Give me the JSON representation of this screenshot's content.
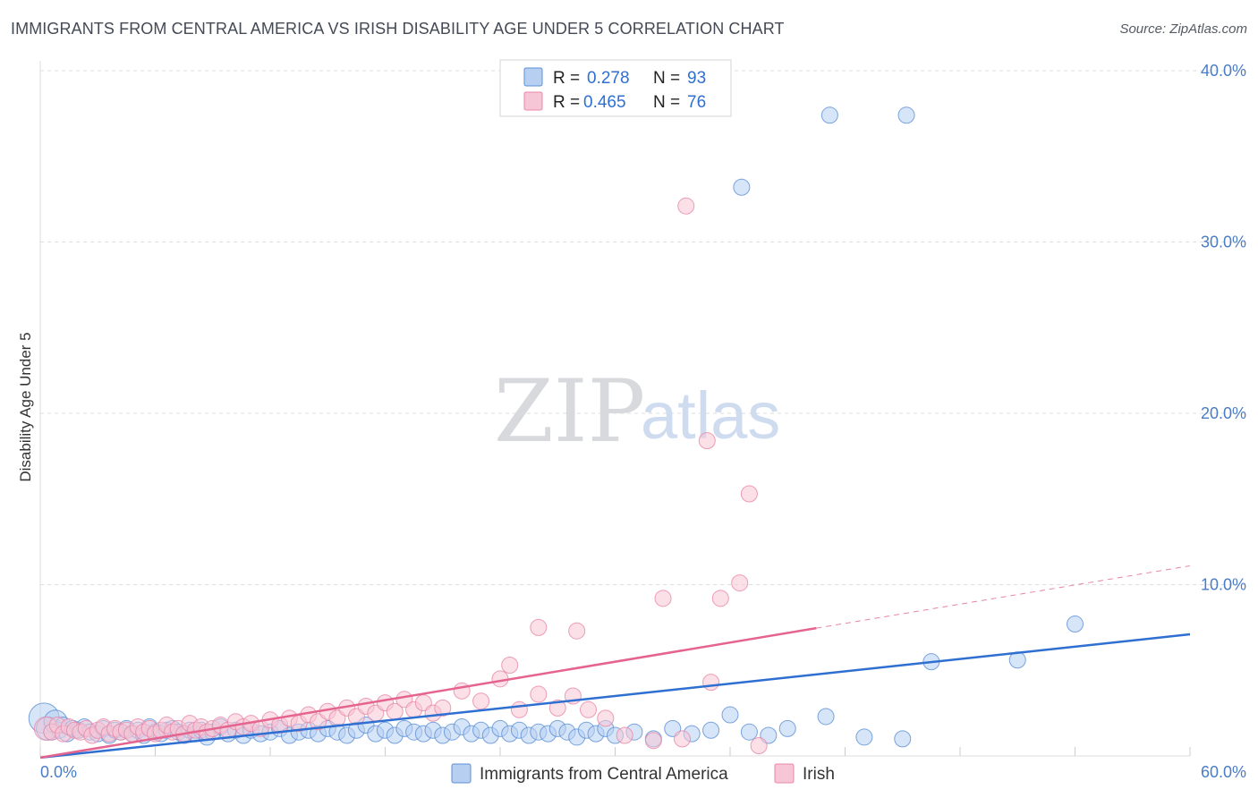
{
  "header": {
    "title": "IMMIGRANTS FROM CENTRAL AMERICA VS IRISH DISABILITY AGE UNDER 5 CORRELATION CHART",
    "source": "Source: ZipAtlas.com"
  },
  "watermark": {
    "zip": "ZIP",
    "atlas": "atlas"
  },
  "colors": {
    "blue": "#5b8fd6",
    "blue_fill": "#b7d0f2",
    "blue_line": "#2e6fd1",
    "pink": "#e886a6",
    "pink_fill": "#f7c6d6",
    "pink_line": "#e5648f",
    "tick": "#4a7cc7",
    "grid": "#dddddd"
  },
  "legend_top": {
    "rows": [
      {
        "r_label": "R =",
        "r_value": "0.278",
        "n_label": "N =",
        "n_value": "93"
      },
      {
        "r_label": "R =",
        "r_value": "0.465",
        "n_label": "N =",
        "n_value": "76"
      }
    ]
  },
  "chart_data": {
    "type": "scatter",
    "title": "IMMIGRANTS FROM CENTRAL AMERICA VS IRISH DISABILITY AGE UNDER 5 CORRELATION CHART",
    "xlabel": "",
    "ylabel": "Disability Age Under 5",
    "xlim": [
      0,
      60
    ],
    "ylim": [
      0,
      40
    ],
    "x_tick_labels": [
      "0.0%",
      "60.0%"
    ],
    "y_ticks": [
      10,
      20,
      30,
      40
    ],
    "y_tick_labels": [
      "10.0%",
      "20.0%",
      "30.0%",
      "40.0%"
    ],
    "grid": true,
    "legend_position": "bottom-center",
    "series": [
      {
        "name": "Immigrants from Central America",
        "r": 0.278,
        "n": 93,
        "trend": {
          "x": [
            0,
            60
          ],
          "y": [
            -0.1,
            7.1
          ],
          "dashed_from": null
        },
        "points": [
          [
            0.2,
            2.2,
            3
          ],
          [
            0.4,
            1.6,
            2
          ],
          [
            0.6,
            1.4,
            1
          ],
          [
            0.8,
            2.0,
            2
          ],
          [
            1.0,
            1.5,
            1
          ],
          [
            1.2,
            1.8,
            1
          ],
          [
            1.4,
            1.3,
            1
          ],
          [
            1.7,
            1.6,
            1
          ],
          [
            2.0,
            1.5,
            1
          ],
          [
            2.3,
            1.7,
            1
          ],
          [
            2.6,
            1.4,
            1
          ],
          [
            3.0,
            1.3,
            1
          ],
          [
            3.3,
            1.6,
            1
          ],
          [
            3.6,
            1.2,
            1
          ],
          [
            3.9,
            1.5,
            1
          ],
          [
            4.2,
            1.4,
            1
          ],
          [
            4.5,
            1.6,
            1
          ],
          [
            4.8,
            1.3,
            1
          ],
          [
            5.1,
            1.5,
            1
          ],
          [
            5.4,
            1.2,
            1
          ],
          [
            5.7,
            1.7,
            1
          ],
          [
            6.0,
            1.4,
            1
          ],
          [
            6.3,
            1.3,
            1
          ],
          [
            6.6,
            1.5,
            1
          ],
          [
            6.9,
            1.6,
            1
          ],
          [
            7.2,
            1.4,
            1
          ],
          [
            7.5,
            1.2,
            1
          ],
          [
            7.8,
            1.5,
            1
          ],
          [
            8.1,
            1.3,
            1
          ],
          [
            8.4,
            1.5,
            1
          ],
          [
            8.7,
            1.1,
            1
          ],
          [
            9.0,
            1.4,
            1
          ],
          [
            9.4,
            1.7,
            1
          ],
          [
            9.8,
            1.3,
            1
          ],
          [
            10.2,
            1.5,
            1
          ],
          [
            10.6,
            1.2,
            1
          ],
          [
            11.0,
            1.5,
            1
          ],
          [
            11.5,
            1.3,
            1
          ],
          [
            12.0,
            1.4,
            1
          ],
          [
            12.5,
            1.6,
            1
          ],
          [
            13.0,
            1.2,
            1
          ],
          [
            13.5,
            1.4,
            1
          ],
          [
            14.0,
            1.5,
            1
          ],
          [
            14.5,
            1.3,
            1
          ],
          [
            15.0,
            1.6,
            1
          ],
          [
            15.5,
            1.4,
            1
          ],
          [
            16.0,
            1.2,
            1
          ],
          [
            16.5,
            1.5,
            1
          ],
          [
            17.0,
            1.8,
            1
          ],
          [
            17.5,
            1.3,
            1
          ],
          [
            18.0,
            1.5,
            1
          ],
          [
            18.5,
            1.2,
            1
          ],
          [
            19.0,
            1.6,
            1
          ],
          [
            19.5,
            1.4,
            1
          ],
          [
            20.0,
            1.3,
            1
          ],
          [
            20.5,
            1.5,
            1
          ],
          [
            21.0,
            1.2,
            1
          ],
          [
            21.5,
            1.4,
            1
          ],
          [
            22.0,
            1.7,
            1
          ],
          [
            22.5,
            1.3,
            1
          ],
          [
            23.0,
            1.5,
            1
          ],
          [
            23.5,
            1.2,
            1
          ],
          [
            24.0,
            1.6,
            1
          ],
          [
            24.5,
            1.3,
            1
          ],
          [
            25.0,
            1.5,
            1
          ],
          [
            25.5,
            1.2,
            1
          ],
          [
            26.0,
            1.4,
            1
          ],
          [
            26.5,
            1.3,
            1
          ],
          [
            27.0,
            1.6,
            1
          ],
          [
            27.5,
            1.4,
            1
          ],
          [
            28.0,
            1.1,
            1
          ],
          [
            28.5,
            1.5,
            1
          ],
          [
            29.0,
            1.3,
            1
          ],
          [
            29.5,
            1.6,
            1
          ],
          [
            30.0,
            1.2,
            1
          ],
          [
            31.0,
            1.4,
            1
          ],
          [
            32.0,
            1.0,
            1
          ],
          [
            33.0,
            1.6,
            1
          ],
          [
            34.0,
            1.3,
            1
          ],
          [
            35.0,
            1.5,
            1
          ],
          [
            36.0,
            2.4,
            1
          ],
          [
            37.0,
            1.4,
            1
          ],
          [
            38.0,
            1.2,
            1
          ],
          [
            39.0,
            1.6,
            1
          ],
          [
            41.0,
            2.3,
            1
          ],
          [
            43.0,
            1.1,
            1
          ],
          [
            45.0,
            1.0,
            1
          ],
          [
            46.5,
            5.5,
            1
          ],
          [
            51.0,
            5.6,
            1
          ],
          [
            54.0,
            7.7,
            1
          ],
          [
            36.6,
            33.2,
            1
          ],
          [
            41.2,
            37.4,
            1
          ],
          [
            45.2,
            37.4,
            1
          ]
        ]
      },
      {
        "name": "Irish",
        "r": 0.465,
        "n": 76,
        "trend": {
          "x": [
            0,
            60
          ],
          "y": [
            -0.1,
            11.1
          ],
          "dashed_from": 40.5
        },
        "points": [
          [
            0.3,
            1.6,
            2
          ],
          [
            0.6,
            1.4,
            1
          ],
          [
            0.9,
            1.8,
            1
          ],
          [
            1.2,
            1.3,
            1
          ],
          [
            1.5,
            1.7,
            1
          ],
          [
            1.8,
            1.5,
            1
          ],
          [
            2.1,
            1.4,
            1
          ],
          [
            2.4,
            1.6,
            1
          ],
          [
            2.7,
            1.2,
            1
          ],
          [
            3.0,
            1.5,
            1
          ],
          [
            3.3,
            1.7,
            1
          ],
          [
            3.6,
            1.3,
            1
          ],
          [
            3.9,
            1.6,
            1
          ],
          [
            4.2,
            1.4,
            1
          ],
          [
            4.5,
            1.5,
            1
          ],
          [
            4.8,
            1.3,
            1
          ],
          [
            5.1,
            1.7,
            1
          ],
          [
            5.4,
            1.4,
            1
          ],
          [
            5.7,
            1.6,
            1
          ],
          [
            6.0,
            1.3,
            1
          ],
          [
            6.3,
            1.5,
            1
          ],
          [
            6.6,
            1.8,
            1
          ],
          [
            6.9,
            1.4,
            1
          ],
          [
            7.2,
            1.6,
            1
          ],
          [
            7.5,
            1.3,
            1
          ],
          [
            7.8,
            1.9,
            1
          ],
          [
            8.1,
            1.5,
            1
          ],
          [
            8.4,
            1.7,
            1
          ],
          [
            8.7,
            1.4,
            1
          ],
          [
            9.0,
            1.6,
            1
          ],
          [
            9.4,
            1.8,
            1
          ],
          [
            9.8,
            1.5,
            1
          ],
          [
            10.2,
            2.0,
            1
          ],
          [
            10.6,
            1.7,
            1
          ],
          [
            11.0,
            1.9,
            1
          ],
          [
            11.5,
            1.6,
            1
          ],
          [
            12.0,
            2.1,
            1
          ],
          [
            12.5,
            1.8,
            1
          ],
          [
            13.0,
            2.2,
            1
          ],
          [
            13.5,
            1.9,
            1
          ],
          [
            14.0,
            2.4,
            1
          ],
          [
            14.5,
            2.0,
            1
          ],
          [
            15.0,
            2.6,
            1
          ],
          [
            15.5,
            2.2,
            1
          ],
          [
            16.0,
            2.8,
            1
          ],
          [
            16.5,
            2.3,
            1
          ],
          [
            17.0,
            2.9,
            1
          ],
          [
            17.5,
            2.5,
            1
          ],
          [
            18.0,
            3.1,
            1
          ],
          [
            18.5,
            2.6,
            1
          ],
          [
            19.0,
            3.3,
            1
          ],
          [
            19.5,
            2.7,
            1
          ],
          [
            20.0,
            3.1,
            1
          ],
          [
            20.5,
            2.5,
            1
          ],
          [
            21.0,
            2.8,
            1
          ],
          [
            22.0,
            3.8,
            1
          ],
          [
            23.0,
            3.2,
            1
          ],
          [
            24.0,
            4.5,
            1
          ],
          [
            24.5,
            5.3,
            1
          ],
          [
            25.0,
            2.7,
            1
          ],
          [
            26.0,
            3.6,
            1
          ],
          [
            27.0,
            2.8,
            1
          ],
          [
            27.8,
            3.5,
            1
          ],
          [
            28.6,
            2.7,
            1
          ],
          [
            29.5,
            2.2,
            1
          ],
          [
            30.5,
            1.2,
            1
          ],
          [
            32.0,
            0.9,
            1
          ],
          [
            33.5,
            1.0,
            1
          ],
          [
            35.0,
            4.3,
            1
          ],
          [
            37.5,
            0.6,
            1
          ],
          [
            28.0,
            7.3,
            1
          ],
          [
            26.0,
            7.5,
            1
          ],
          [
            32.5,
            9.2,
            1
          ],
          [
            35.5,
            9.2,
            1
          ],
          [
            36.5,
            10.1,
            1
          ],
          [
            34.8,
            18.4,
            1
          ],
          [
            37.0,
            15.3,
            1
          ],
          [
            33.7,
            32.1,
            1
          ]
        ]
      }
    ]
  }
}
